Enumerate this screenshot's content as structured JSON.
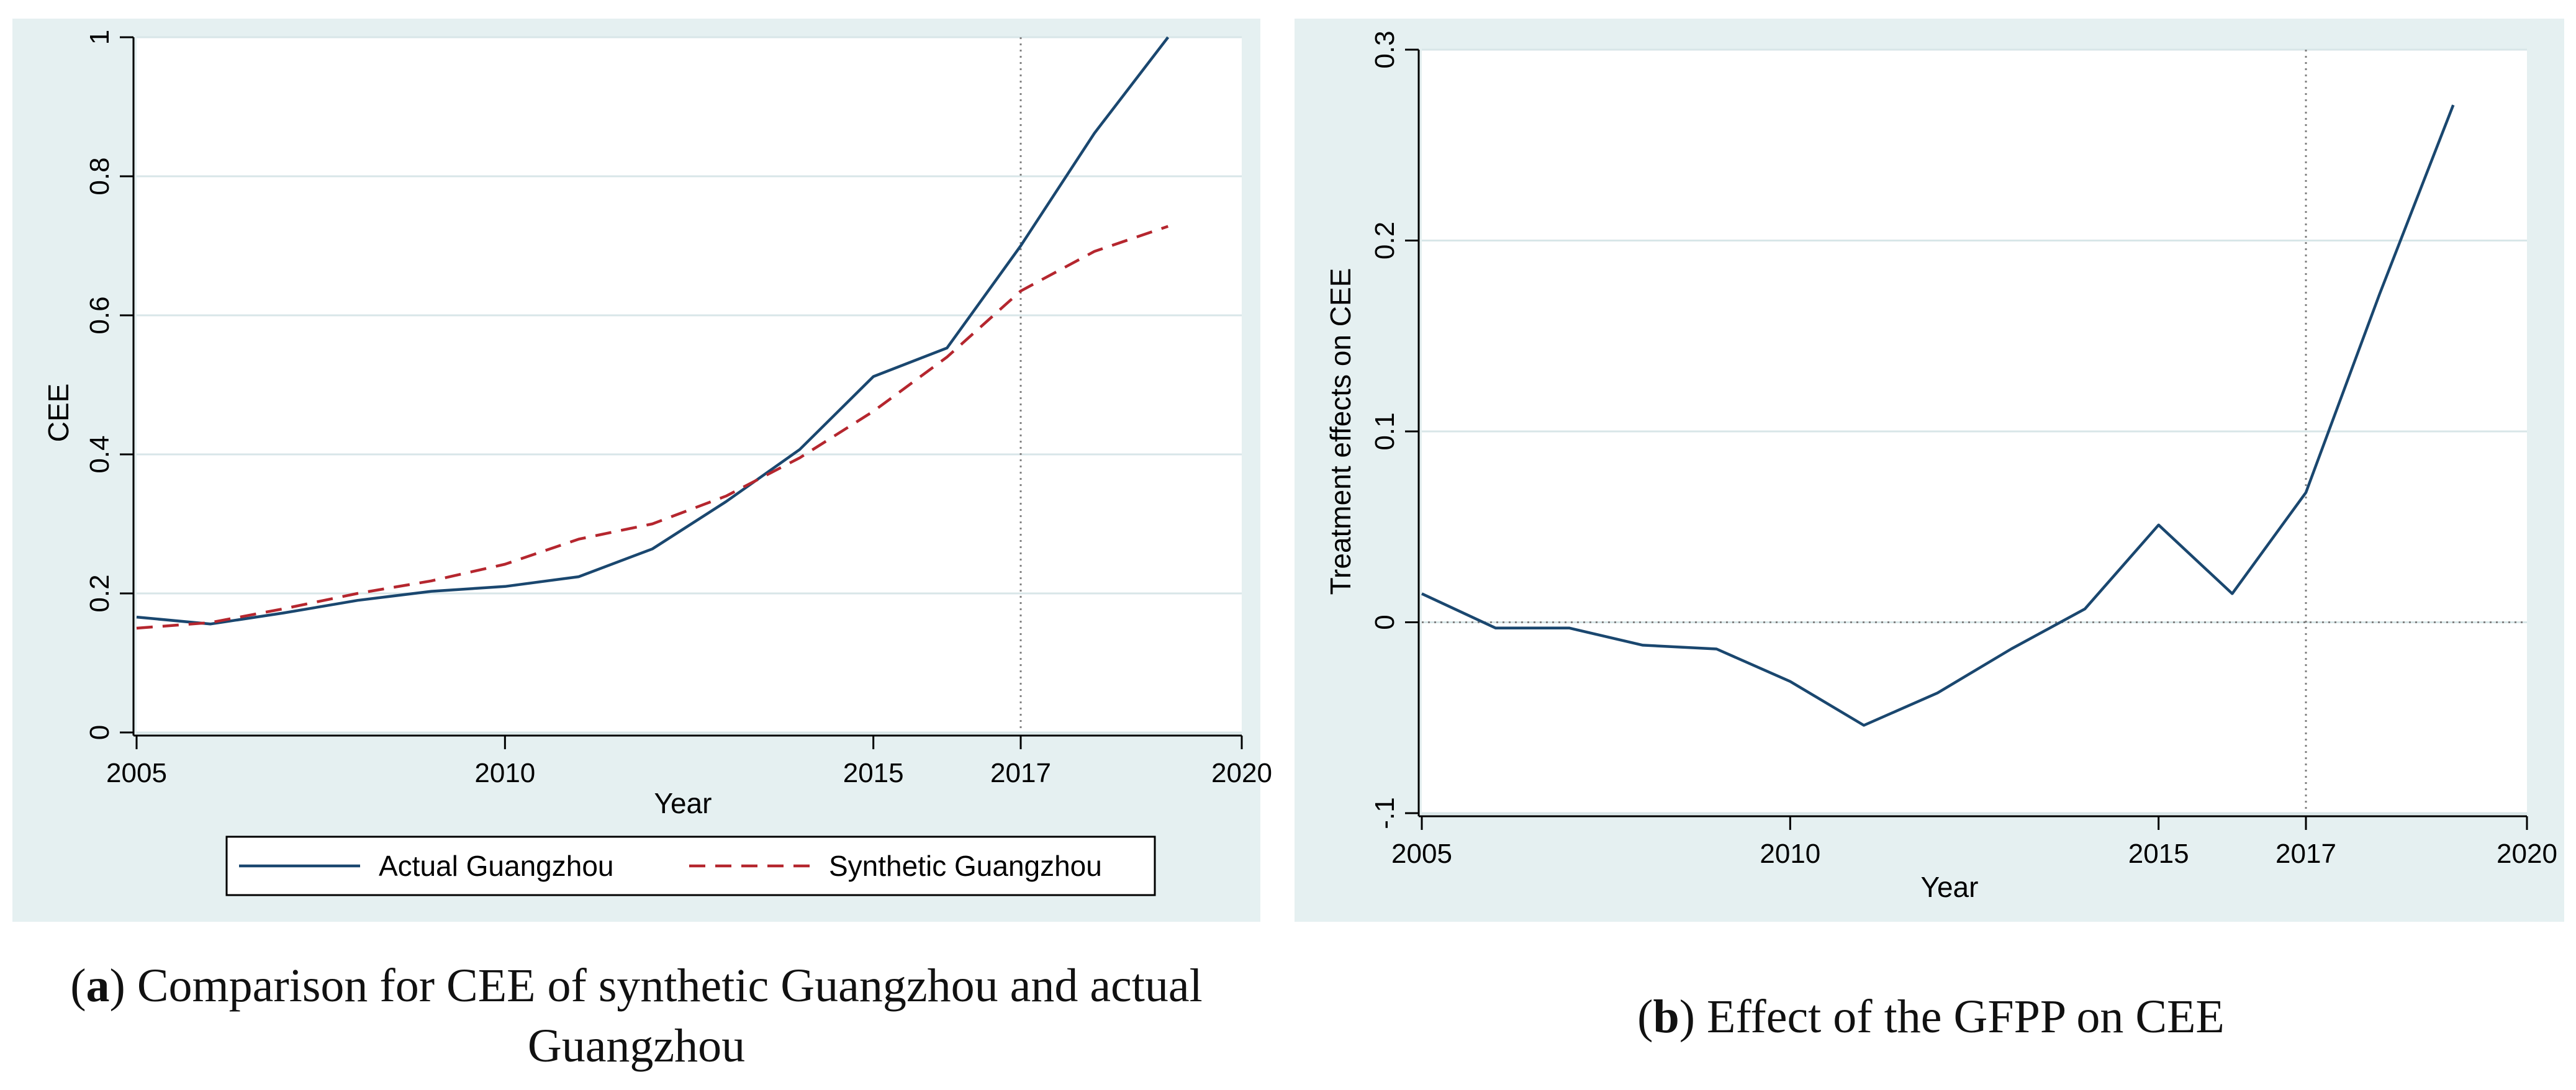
{
  "colors": {
    "panel_bg": "#e5f0f1",
    "plot_bg": "#ffffff",
    "grid": "#d8e6e8",
    "actual": "#1a476f",
    "synthetic": "#b5262e",
    "refline": "#808080",
    "axis": "#000000"
  },
  "chart_data": [
    {
      "type": "line",
      "panel": "a",
      "title": "",
      "xlabel": "Year",
      "ylabel": "CEE",
      "xlim": [
        2005,
        2020
      ],
      "ylim": [
        0,
        1
      ],
      "xticks": [
        2005,
        2010,
        2015,
        2017,
        2020
      ],
      "yticks": [
        0,
        0.2,
        0.4,
        0.6,
        0.8,
        1
      ],
      "ytick_labels": [
        "0",
        "0.2",
        "0.4",
        "0.6",
        "0.8",
        "1"
      ],
      "grid": true,
      "vline": 2017,
      "x": [
        2005,
        2006,
        2007,
        2008,
        2009,
        2010,
        2011,
        2012,
        2013,
        2014,
        2015,
        2016,
        2017,
        2018,
        2019
      ],
      "series": [
        {
          "name": "Actual Guangzhou",
          "style": "solid",
          "values": [
            0.166,
            0.156,
            0.172,
            0.19,
            0.203,
            0.21,
            0.224,
            0.264,
            0.332,
            0.407,
            0.512,
            0.553,
            0.7,
            0.862,
            1.0
          ]
        },
        {
          "name": "Synthetic Guangzhou",
          "style": "dashed",
          "values": [
            0.15,
            0.158,
            0.178,
            0.2,
            0.218,
            0.242,
            0.278,
            0.3,
            0.34,
            0.395,
            0.462,
            0.54,
            0.635,
            0.692,
            0.728
          ]
        }
      ],
      "legend_position": "bottom",
      "caption_letter": "a",
      "caption_text": ") Comparison for CEE of synthetic Guangzhou and actual Guangzhou"
    },
    {
      "type": "line",
      "panel": "b",
      "title": "",
      "xlabel": "Year",
      "ylabel": "Treatment effects on CEE",
      "xlim": [
        2005,
        2020
      ],
      "ylim": [
        -0.1,
        0.3
      ],
      "xticks": [
        2005,
        2010,
        2015,
        2017,
        2020
      ],
      "yticks": [
        -0.1,
        0,
        0.1,
        0.2,
        0.3
      ],
      "ytick_labels": [
        "-.1",
        "0",
        "0.1",
        "0.2",
        "0.3"
      ],
      "grid": true,
      "vline": 2017,
      "hline": 0,
      "x": [
        2005,
        2006,
        2007,
        2008,
        2009,
        2010,
        2011,
        2012,
        2013,
        2014,
        2015,
        2016,
        2017,
        2018,
        2019
      ],
      "series": [
        {
          "name": "Treatment effect",
          "style": "solid",
          "values": [
            0.015,
            -0.003,
            -0.003,
            -0.012,
            -0.014,
            -0.031,
            -0.054,
            -0.037,
            -0.014,
            0.007,
            0.051,
            0.015,
            0.068,
            0.172,
            0.271
          ]
        }
      ],
      "caption_letter": "b",
      "caption_text": ") Effect of the GFPP on CEE"
    }
  ]
}
